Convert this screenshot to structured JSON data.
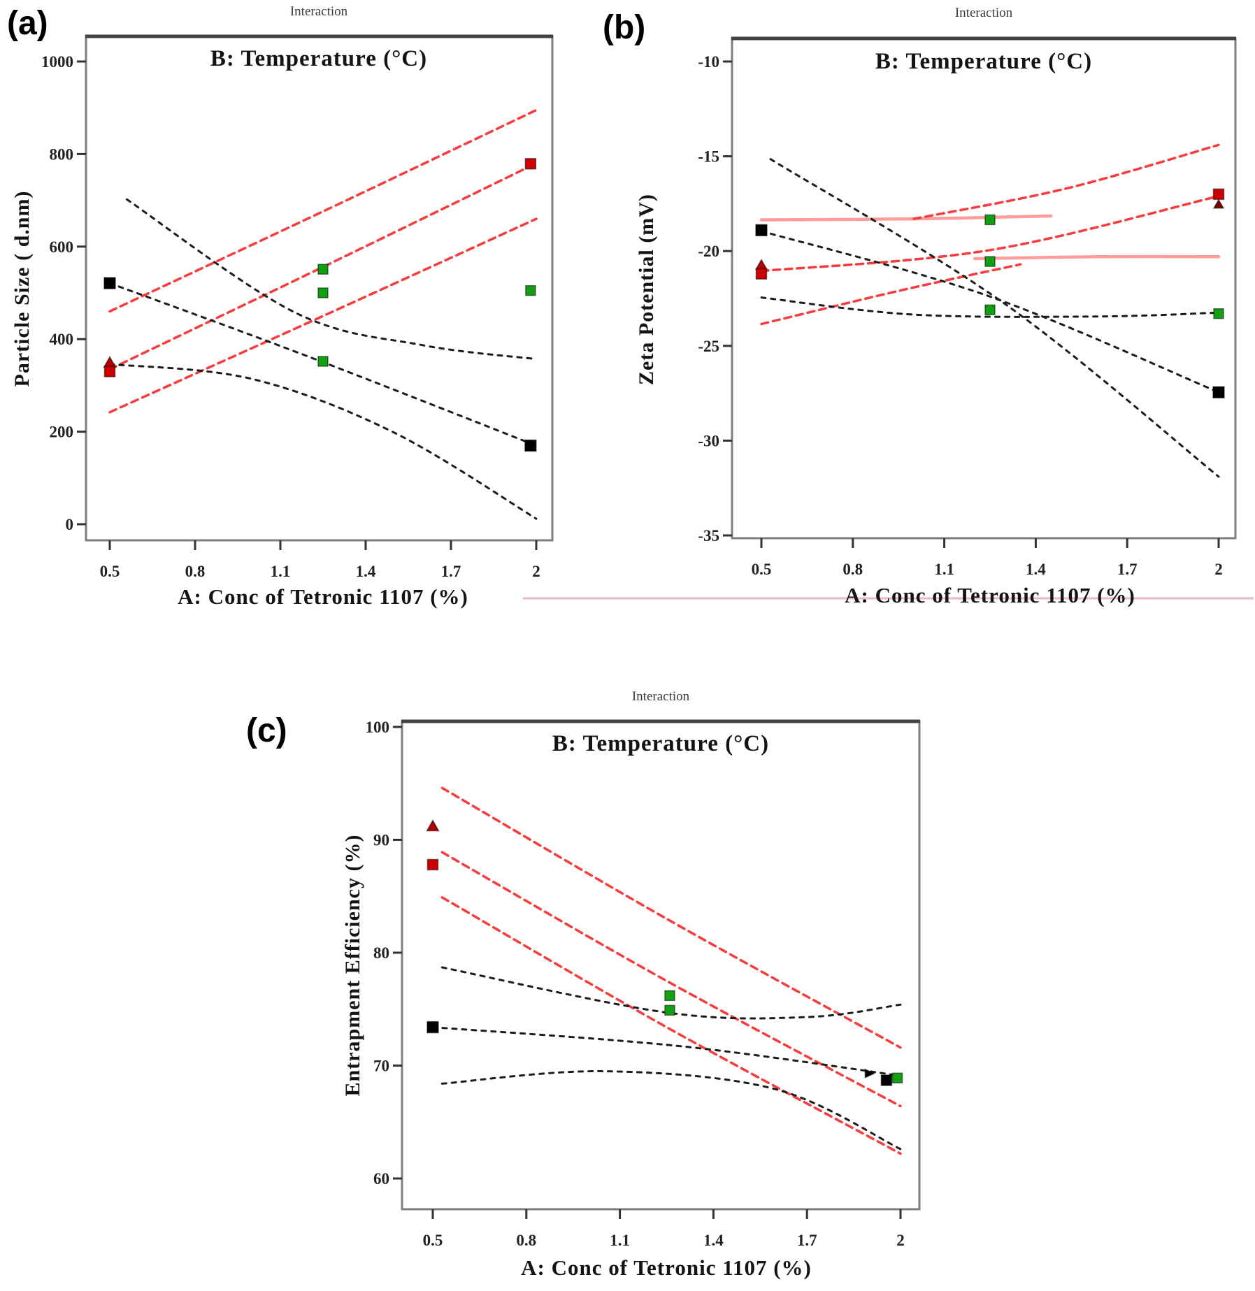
{
  "figure": {
    "background": "#ffffff",
    "artifact_line_color": "#edb9c6",
    "accent_red": "#f63c3c",
    "accent_pink": "#ff9d9d",
    "accent_green": "#12a012",
    "accent_black": "#1c1c1c"
  },
  "chart_data": [
    {
      "type": "line",
      "panel_label": "(a)",
      "title": "Interaction",
      "subtitle": "B: Temperature (°C)",
      "xlabel": "A: Conc of Tetronic 1107 (%)",
      "ylabel": "Particle Size ( d.nm)",
      "x_ticks": [
        0.5,
        0.8,
        1.1,
        1.4,
        1.7,
        2
      ],
      "y_ticks": [
        1000,
        800,
        600,
        400,
        200,
        0
      ],
      "xlim": [
        0.5,
        2
      ],
      "ylim": [
        0,
        1000
      ],
      "grid": false,
      "legend": "none",
      "series": [
        {
          "name": "temp-high-ci-upper",
          "color": "#f63c3c",
          "dash": "10 7",
          "width": 3.5,
          "points": [
            [
              0.5,
              460
            ],
            [
              1.25,
              676
            ],
            [
              2,
              895
            ]
          ]
        },
        {
          "name": "temp-high-mean",
          "color": "#f63c3c",
          "dash": "10 7",
          "width": 3.5,
          "points": [
            [
              0.5,
              335
            ],
            [
              1.25,
              556
            ],
            [
              2,
              780
            ]
          ]
        },
        {
          "name": "temp-high-ci-lower",
          "color": "#f63c3c",
          "dash": "10 7",
          "width": 3.5,
          "points": [
            [
              0.5,
              242
            ],
            [
              1.25,
              450
            ],
            [
              2,
              660
            ]
          ]
        },
        {
          "name": "temp-low-ci-upper",
          "color": "#1c1c1c",
          "dash": "6 8",
          "width": 3,
          "points": [
            [
              0.56,
              702
            ],
            [
              1.15,
              458
            ],
            [
              1.6,
              387
            ],
            [
              2,
              357
            ]
          ]
        },
        {
          "name": "temp-low-mean",
          "color": "#1c1c1c",
          "dash": "6 8",
          "width": 3,
          "points": [
            [
              0.5,
              521
            ],
            [
              1.2,
              362
            ],
            [
              2,
              170
            ]
          ]
        },
        {
          "name": "temp-low-ci-lower",
          "color": "#1c1c1c",
          "dash": "6 8",
          "width": 3,
          "points": [
            [
              0.5,
              346
            ],
            [
              1.0,
              314
            ],
            [
              1.5,
              198
            ],
            [
              2,
              12
            ]
          ]
        }
      ],
      "markers": [
        {
          "x": 0.5,
          "y": 521,
          "shape": "square",
          "color": "#000000",
          "size": 16
        },
        {
          "x": 0.5,
          "y": 349,
          "shape": "triangle-up",
          "color": "#b30000",
          "size": 15
        },
        {
          "x": 0.5,
          "y": 330,
          "shape": "square",
          "color": "#cc0000",
          "size": 15
        },
        {
          "x": 1.25,
          "y": 551,
          "shape": "square",
          "color": "#12a012",
          "size": 14
        },
        {
          "x": 1.25,
          "y": 500,
          "shape": "square",
          "color": "#12a012",
          "size": 14
        },
        {
          "x": 1.25,
          "y": 352,
          "shape": "square",
          "color": "#12a012",
          "size": 14
        },
        {
          "x": 1.98,
          "y": 779,
          "shape": "square",
          "color": "#cc0000",
          "size": 15
        },
        {
          "x": 1.98,
          "y": 505,
          "shape": "square",
          "color": "#12a012",
          "size": 14
        },
        {
          "x": 1.98,
          "y": 170,
          "shape": "square",
          "color": "#000000",
          "size": 16
        }
      ]
    },
    {
      "type": "line",
      "panel_label": "(b)",
      "title": "Interaction",
      "subtitle": "B: Temperature (°C)",
      "xlabel": "A: Conc of Tetronic 1107 (%)",
      "ylabel": "Zeta Potential (mV)",
      "x_ticks": [
        0.5,
        0.8,
        1.1,
        1.4,
        1.7,
        2
      ],
      "y_ticks": [
        -10,
        -15,
        -20,
        -25,
        -30,
        -35
      ],
      "xlim": [
        0.5,
        2
      ],
      "ylim": [
        -35,
        -10
      ],
      "grid": false,
      "legend": "none",
      "series": [
        {
          "name": "temp-high-ci-upper-flat",
          "color": "#ff9d9d",
          "dash": "",
          "width": 4.5,
          "points": [
            [
              0.5,
              -18.35
            ],
            [
              1.0,
              -18.3
            ],
            [
              1.45,
              -18.15
            ]
          ]
        },
        {
          "name": "temp-high-ci-upper",
          "color": "#f63c3c",
          "dash": "10 7",
          "width": 3.5,
          "points": [
            [
              1.0,
              -18.3
            ],
            [
              1.5,
              -16.7
            ],
            [
              2,
              -14.4
            ]
          ]
        },
        {
          "name": "temp-high-mean",
          "color": "#f63c3c",
          "dash": "10 7",
          "width": 3.5,
          "points": [
            [
              0.5,
              -21.05
            ],
            [
              1.25,
              -19.95
            ],
            [
              2,
              -17.1
            ]
          ]
        },
        {
          "name": "temp-high-ci-lower",
          "color": "#f63c3c",
          "dash": "10 7",
          "width": 3.5,
          "points": [
            [
              0.5,
              -23.85
            ],
            [
              0.95,
              -22.1
            ],
            [
              1.35,
              -20.7
            ]
          ]
        },
        {
          "name": "temp-high-ci-lower-flat",
          "color": "#ff9d9d",
          "dash": "",
          "width": 4.5,
          "points": [
            [
              1.2,
              -20.4
            ],
            [
              1.6,
              -20.3
            ],
            [
              2,
              -20.3
            ]
          ]
        },
        {
          "name": "temp-low-ci-a",
          "color": "#1c1c1c",
          "dash": "6 8",
          "width": 3,
          "points": [
            [
              0.53,
              -15.15
            ],
            [
              1.3,
              -22.8
            ],
            [
              2,
              -31.9
            ]
          ]
        },
        {
          "name": "temp-low-mean",
          "color": "#1c1c1c",
          "dash": "6 8",
          "width": 3,
          "points": [
            [
              0.5,
              -18.95
            ],
            [
              1.25,
              -22.4
            ],
            [
              2,
              -27.45
            ]
          ]
        },
        {
          "name": "temp-low-ci-b",
          "color": "#1c1c1c",
          "dash": "6 8",
          "width": 3,
          "points": [
            [
              0.5,
              -22.45
            ],
            [
              1.0,
              -23.35
            ],
            [
              1.6,
              -23.45
            ],
            [
              2,
              -23.25
            ]
          ]
        }
      ],
      "markers": [
        {
          "x": 0.5,
          "y": -18.9,
          "shape": "square",
          "color": "#000000",
          "size": 16
        },
        {
          "x": 0.5,
          "y": -20.75,
          "shape": "triangle-up",
          "color": "#b30000",
          "size": 14
        },
        {
          "x": 0.5,
          "y": -21.2,
          "shape": "square",
          "color": "#cc0000",
          "size": 15
        },
        {
          "x": 1.25,
          "y": -18.35,
          "shape": "square",
          "color": "#12a012",
          "size": 14
        },
        {
          "x": 1.25,
          "y": -20.55,
          "shape": "square",
          "color": "#12a012",
          "size": 14
        },
        {
          "x": 1.25,
          "y": -23.1,
          "shape": "square",
          "color": "#12a012",
          "size": 14
        },
        {
          "x": 2,
          "y": -17.0,
          "shape": "square",
          "color": "#cc0000",
          "size": 15
        },
        {
          "x": 2,
          "y": -17.55,
          "shape": "triangle-up",
          "color": "#7a0000",
          "size": 12
        },
        {
          "x": 2,
          "y": -23.3,
          "shape": "square",
          "color": "#12a012",
          "size": 14
        },
        {
          "x": 2,
          "y": -27.45,
          "shape": "square",
          "color": "#000000",
          "size": 16
        }
      ]
    },
    {
      "type": "line",
      "panel_label": "(c)",
      "title": "Interaction",
      "subtitle": "B: Temperature (°C)",
      "xlabel": "A: Conc of Tetronic 1107 (%)",
      "ylabel": "Entrapment Efficiency (%)",
      "x_ticks": [
        0.5,
        0.8,
        1.1,
        1.4,
        1.7,
        2
      ],
      "y_ticks": [
        100,
        90,
        80,
        70,
        60
      ],
      "xlim": [
        0.5,
        2
      ],
      "ylim": [
        60,
        100
      ],
      "grid": false,
      "legend": "none",
      "series": [
        {
          "name": "temp-high-ci-upper",
          "color": "#f63c3c",
          "dash": "10 7",
          "width": 3.5,
          "points": [
            [
              0.53,
              94.6
            ],
            [
              1.25,
              83.0
            ],
            [
              2,
              71.6
            ]
          ]
        },
        {
          "name": "temp-high-mean",
          "color": "#f63c3c",
          "dash": "10 7",
          "width": 3.5,
          "points": [
            [
              0.53,
              88.9
            ],
            [
              1.25,
              77.5
            ],
            [
              2,
              66.4
            ]
          ]
        },
        {
          "name": "temp-high-ci-lower",
          "color": "#f63c3c",
          "dash": "10 7",
          "width": 3.5,
          "points": [
            [
              0.53,
              84.9
            ],
            [
              1.25,
              73.4
            ],
            [
              2,
              62.2
            ]
          ]
        },
        {
          "name": "temp-low-ci-upper",
          "color": "#1c1c1c",
          "dash": "6 8",
          "width": 3,
          "points": [
            [
              0.53,
              78.7
            ],
            [
              1.25,
              74.7
            ],
            [
              1.7,
              74.3
            ],
            [
              2,
              75.4
            ]
          ]
        },
        {
          "name": "temp-low-mean",
          "color": "#1c1c1c",
          "dash": "6 8",
          "width": 3,
          "points": [
            [
              0.5,
              73.4
            ],
            [
              1.3,
              71.7
            ],
            [
              2,
              69.1
            ]
          ]
        },
        {
          "name": "temp-low-ci-lower",
          "color": "#1c1c1c",
          "dash": "6 8",
          "width": 3,
          "points": [
            [
              0.53,
              68.4
            ],
            [
              1.05,
              69.5
            ],
            [
              1.6,
              67.9
            ],
            [
              2,
              62.6
            ]
          ]
        }
      ],
      "markers": [
        {
          "x": 0.5,
          "y": 91.2,
          "shape": "triangle-up",
          "color": "#b30000",
          "size": 15
        },
        {
          "x": 0.5,
          "y": 87.8,
          "shape": "square",
          "color": "#cc0000",
          "size": 15
        },
        {
          "x": 0.5,
          "y": 73.4,
          "shape": "square",
          "color": "#000000",
          "size": 16
        },
        {
          "x": 1.26,
          "y": 76.2,
          "shape": "square",
          "color": "#12a012",
          "size": 14
        },
        {
          "x": 1.26,
          "y": 74.9,
          "shape": "square",
          "color": "#12a012",
          "size": 14
        },
        {
          "x": 1.9,
          "y": 69.3,
          "shape": "triangle-right",
          "color": "#000000",
          "size": 12
        },
        {
          "x": 1.955,
          "y": 68.7,
          "shape": "square",
          "color": "#000000",
          "size": 15
        },
        {
          "x": 1.99,
          "y": 68.9,
          "shape": "square",
          "color": "#12a012",
          "size": 14
        }
      ]
    }
  ]
}
